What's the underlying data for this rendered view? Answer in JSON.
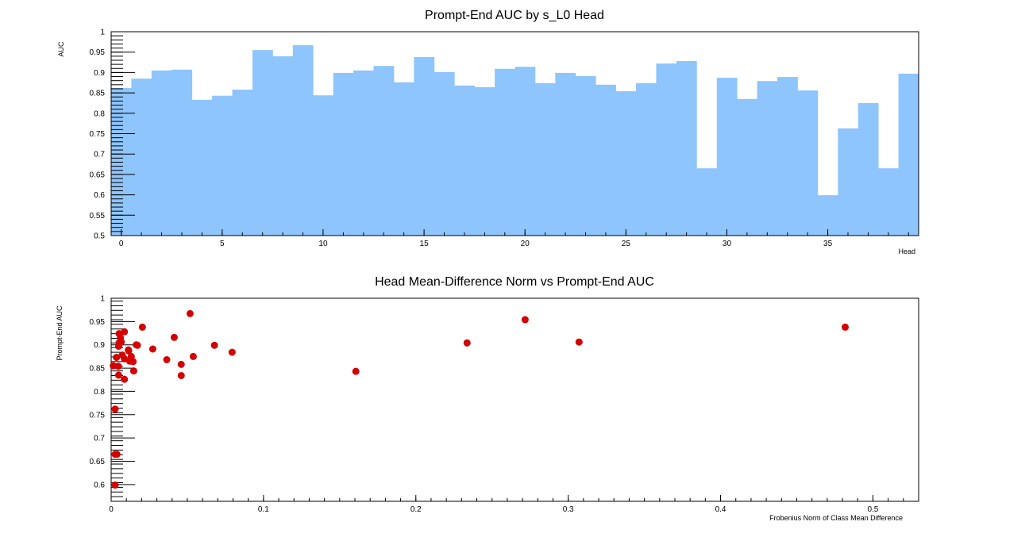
{
  "colors": {
    "bar": "#8ec5fc",
    "marker": "#d40000"
  },
  "chart_data": [
    {
      "type": "bar",
      "title": "Prompt-End AUC by s_L0 Head",
      "xlabel": "Head",
      "ylabel": "AUC",
      "xlim": [
        -0.5,
        39.5
      ],
      "ylim": [
        0.5,
        1.0
      ],
      "grid": false,
      "x_ticks": [
        0,
        5,
        10,
        15,
        20,
        25,
        30,
        35
      ],
      "y_ticks": [
        0.5,
        0.55,
        0.6,
        0.65,
        0.7,
        0.75,
        0.8,
        0.85,
        0.9,
        0.95,
        1
      ],
      "x_tick_labels": [
        "0",
        "5",
        "10",
        "15",
        "20",
        "25",
        "30",
        "35"
      ],
      "y_tick_labels": [
        "0.5",
        "0.55",
        "0.6",
        "0.65",
        "0.7",
        "0.75",
        "0.8",
        "0.85",
        "0.9",
        "0.95",
        "1"
      ],
      "categories": [
        0,
        1,
        2,
        3,
        4,
        5,
        6,
        7,
        8,
        9,
        10,
        11,
        12,
        13,
        14,
        15,
        16,
        17,
        18,
        19,
        20,
        21,
        22,
        23,
        24,
        25,
        26,
        27,
        28,
        29,
        30,
        31,
        32,
        33,
        34,
        35,
        36,
        37,
        38,
        39
      ],
      "values": [
        0.862,
        0.885,
        0.905,
        0.907,
        0.833,
        0.843,
        0.858,
        0.955,
        0.94,
        0.967,
        0.844,
        0.899,
        0.905,
        0.916,
        0.876,
        0.938,
        0.901,
        0.868,
        0.864,
        0.909,
        0.914,
        0.874,
        0.899,
        0.891,
        0.87,
        0.854,
        0.874,
        0.922,
        0.928,
        0.665,
        0.887,
        0.835,
        0.879,
        0.889,
        0.856,
        0.599,
        0.763,
        0.825,
        0.665,
        0.897
      ]
    },
    {
      "type": "scatter",
      "title": "Head Mean-Difference Norm vs Prompt-End AUC",
      "xlabel": "Frobenius Norm of Class Mean Difference",
      "ylabel": "Prompt-End AUC",
      "xlim": [
        0,
        0.53
      ],
      "ylim": [
        0.564,
        1.0
      ],
      "grid": false,
      "x_ticks": [
        0,
        0.1,
        0.2,
        0.3,
        0.4,
        0.5
      ],
      "y_ticks": [
        0.6,
        0.65,
        0.7,
        0.75,
        0.8,
        0.85,
        0.9,
        0.95,
        1
      ],
      "x_tick_labels": [
        "0",
        "0.1",
        "0.2",
        "0.3",
        "0.4",
        "0.5"
      ],
      "y_tick_labels": [
        "0.6",
        "0.65",
        "0.7",
        "0.75",
        "0.8",
        "0.85",
        "0.9",
        "0.95",
        "1"
      ],
      "points": [
        [
          0.0518,
          0.967
        ],
        [
          0.0205,
          0.938
        ],
        [
          0.0087,
          0.928
        ],
        [
          0.0052,
          0.924
        ],
        [
          0.0414,
          0.916
        ],
        [
          0.0061,
          0.915
        ],
        [
          0.0066,
          0.906
        ],
        [
          0.0052,
          0.904
        ],
        [
          0.0165,
          0.9
        ],
        [
          0.0172,
          0.899
        ],
        [
          0.0678,
          0.899
        ],
        [
          0.0049,
          0.897
        ],
        [
          0.0273,
          0.891
        ],
        [
          0.0113,
          0.889
        ],
        [
          0.0794,
          0.884
        ],
        [
          0.0115,
          0.887
        ],
        [
          0.0073,
          0.878
        ],
        [
          0.0035,
          0.873
        ],
        [
          0.0132,
          0.875
        ],
        [
          0.0539,
          0.875
        ],
        [
          0.0087,
          0.87
        ],
        [
          0.0122,
          0.865
        ],
        [
          0.0144,
          0.864
        ],
        [
          0.0365,
          0.868
        ],
        [
          0.0014,
          0.855
        ],
        [
          0.0047,
          0.854
        ],
        [
          0.046,
          0.858
        ],
        [
          0.0148,
          0.844
        ],
        [
          0.0049,
          0.835
        ],
        [
          0.046,
          0.834
        ],
        [
          0.0087,
          0.826
        ],
        [
          0.0026,
          0.762
        ],
        [
          0.0026,
          0.665
        ],
        [
          0.0038,
          0.665
        ],
        [
          0.0026,
          0.599
        ],
        [
          0.1606,
          0.843
        ],
        [
          0.2336,
          0.904
        ],
        [
          0.2717,
          0.954
        ],
        [
          0.3071,
          0.906
        ],
        [
          0.4818,
          0.938
        ]
      ]
    }
  ]
}
